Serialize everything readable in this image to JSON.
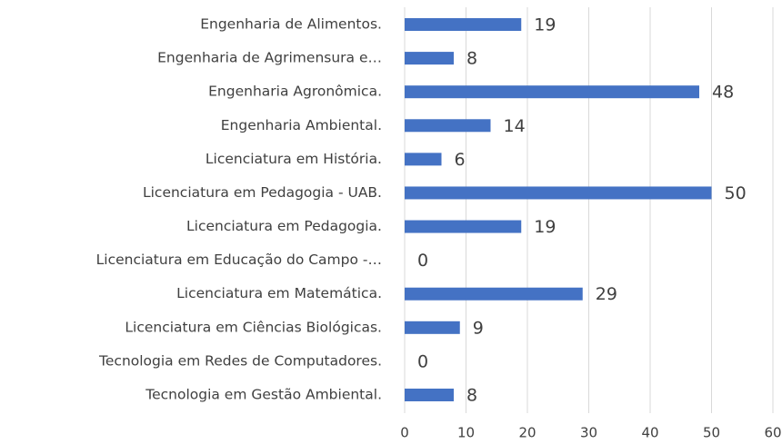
{
  "chart_data": {
    "type": "bar",
    "orientation": "horizontal",
    "categories": [
      "Engenharia de Alimentos.",
      "Engenharia de Agrimensura e…",
      "Engenharia Agronômica.",
      "Engenharia Ambiental.",
      "Licenciatura em História.",
      "Licenciatura em Pedagogia - UAB.",
      "Licenciatura em Pedagogia.",
      "Licenciatura em Educação do Campo -…",
      "Licenciatura em Matemática.",
      "Licenciatura em Ciências Biológicas.",
      "Tecnologia em Redes de Computadores.",
      "Tecnologia em Gestão Ambiental."
    ],
    "values": [
      19,
      8,
      48,
      14,
      6,
      50,
      19,
      0,
      29,
      9,
      0,
      8
    ],
    "color": "#4472c4",
    "xlim": [
      0,
      60
    ],
    "xticks": [
      0,
      10,
      20,
      30,
      40,
      50,
      60
    ],
    "grid": true
  }
}
